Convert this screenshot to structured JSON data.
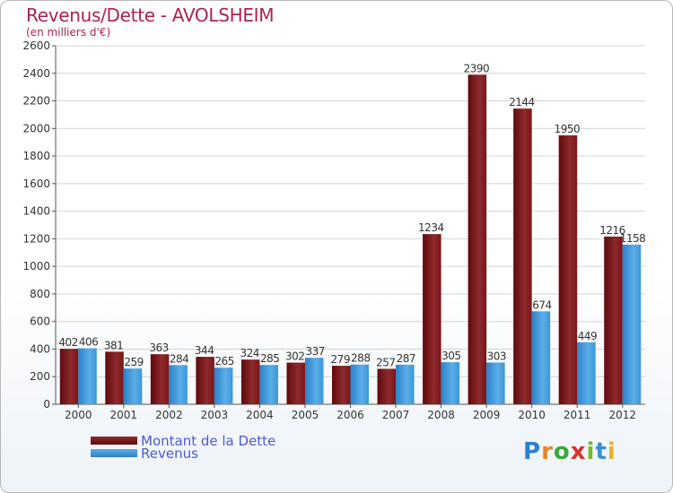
{
  "header": {
    "title": "Revenus/Dette - AVOLSHEIM",
    "subtitle": "(en milliers d'€)"
  },
  "chart_data": {
    "type": "bar",
    "categories": [
      "2000",
      "2001",
      "2002",
      "2003",
      "2004",
      "2005",
      "2006",
      "2007",
      "2008",
      "2009",
      "2010",
      "2011",
      "2012"
    ],
    "series": [
      {
        "name": "Montant de la Dette",
        "color": "#7a1518",
        "values": [
          402,
          381,
          363,
          344,
          324,
          302,
          279,
          257,
          1234,
          2390,
          2144,
          1950,
          1216
        ]
      },
      {
        "name": "Revenus",
        "color": "#3d96d8",
        "values": [
          406,
          259,
          284,
          265,
          285,
          337,
          288,
          287,
          305,
          303,
          674,
          449,
          1158
        ]
      }
    ],
    "ylim": [
      0,
      2600
    ],
    "yticks": [
      0,
      200,
      400,
      600,
      800,
      1000,
      1200,
      1400,
      1600,
      1800,
      2000,
      2200,
      2400,
      2600
    ],
    "grid": true,
    "legend": "bottom-left"
  },
  "logo": {
    "text": "Proxiti",
    "letters": [
      "P",
      "r",
      "o",
      "x",
      "i",
      "t",
      "i"
    ],
    "colors": [
      "#2e7fd0",
      "#e8832a",
      "#3aa63a",
      "#d8312a",
      "#7ab82e",
      "#3a8ed8",
      "#e8b02a"
    ]
  }
}
